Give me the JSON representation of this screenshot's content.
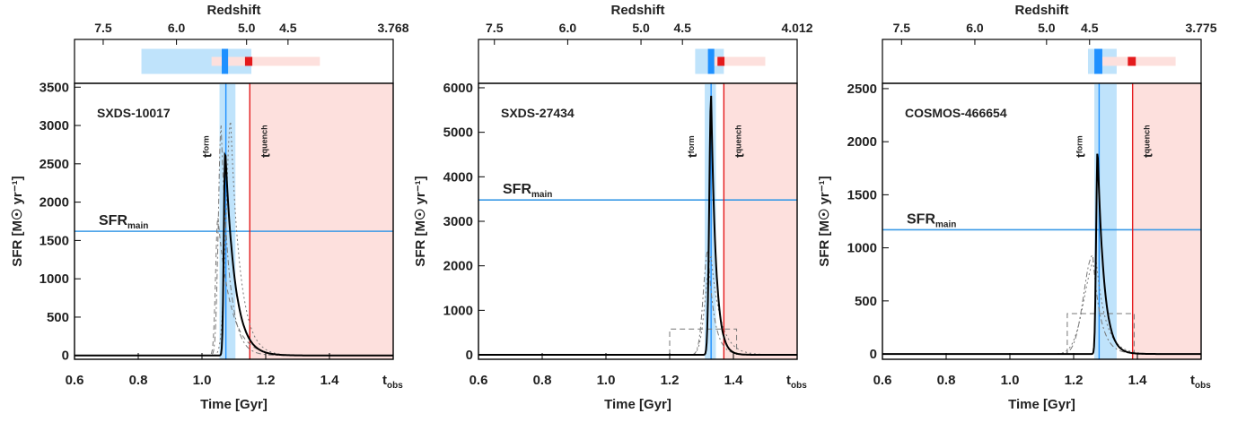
{
  "colors": {
    "form_band": "#bfe3fb",
    "form_line": "#1e90ff",
    "quench_band": "#fde0dd",
    "quench_line": "#e41a1c",
    "sfr_main_line": "#3a9ae6",
    "sfh": "#000000",
    "alt_sfh": "#777777"
  },
  "chart_data": [
    {
      "type": "line",
      "title": "SXDS-10017",
      "xlabel": "Time [Gyr]",
      "ylabel": "SFR [M☉ yr⁻¹]",
      "top_axis_label": "Redshift",
      "xlim": [
        0.6,
        1.6
      ],
      "ylim": [
        -50,
        3550
      ],
      "x_ticks": [
        "0.6",
        "0.8",
        "1.0",
        "1.2",
        "1.4"
      ],
      "t_obs_label": "t",
      "t_obs_sub": "obs",
      "y_ticks": [
        "0",
        "500",
        "1000",
        "1500",
        "2000",
        "2500",
        "3000",
        "3500"
      ],
      "z_ticks": [
        {
          "label": "7.5",
          "t": 0.69
        },
        {
          "label": "6.0",
          "t": 0.92
        },
        {
          "label": "5.0",
          "t": 1.14
        },
        {
          "label": "4.5",
          "t": 1.27
        },
        {
          "label": "3.768",
          "t": 1.6
        }
      ],
      "sfr_main": 1620,
      "sfr_main_label": "SFR",
      "sfr_main_sub": "main",
      "t_form": 1.075,
      "t_form_band": [
        1.055,
        1.105
      ],
      "t_quench": 1.15,
      "t_form_label": "t",
      "t_form_sub": "form",
      "t_quench_label": "t",
      "t_quench_sub": "quench",
      "top_form_bar_light": [
        0.81,
        1.155
      ],
      "top_form_bar_dark": [
        1.062,
        1.082
      ],
      "top_quench_bar_light": [
        1.03,
        1.37
      ],
      "top_quench_bar_dark": [
        1.135,
        1.158
      ],
      "sfh_peak_t": 1.073,
      "sfh_peak": 2690,
      "sfh_rise_tau": 0.006,
      "sfh_decay_tau": 0.03,
      "alt_sfh": [
        {
          "t0": 1.06,
          "peak": 3000,
          "rise": 0.012,
          "decay": 0.025,
          "dash": "6,3,2,3"
        },
        {
          "t0": 1.09,
          "peak": 3050,
          "rise": 0.02,
          "decay": 0.03,
          "dash": "2,3"
        },
        {
          "t0": 1.05,
          "peak": 1800,
          "rise": 0.01,
          "decay": 0.04,
          "dash": "5,4"
        }
      ]
    },
    {
      "type": "line",
      "title": "SXDS-27434",
      "xlabel": "Time [Gyr]",
      "ylabel": "SFR [M☉ yr⁻¹]",
      "top_axis_label": "Redshift",
      "xlim": [
        0.6,
        1.6
      ],
      "ylim": [
        -100,
        6100
      ],
      "x_ticks": [
        "0.6",
        "0.8",
        "1.0",
        "1.2",
        "1.4"
      ],
      "t_obs_label": "t",
      "t_obs_sub": "obs",
      "y_ticks": [
        "0",
        "1000",
        "2000",
        "3000",
        "4000",
        "5000",
        "6000"
      ],
      "z_ticks": [
        {
          "label": "7.5",
          "t": 0.65
        },
        {
          "label": "6.0",
          "t": 0.88
        },
        {
          "label": "5.0",
          "t": 1.11
        },
        {
          "label": "4.5",
          "t": 1.24
        },
        {
          "label": "4.012",
          "t": 1.6
        }
      ],
      "sfr_main": 3480,
      "sfr_main_label": "SFR",
      "sfr_main_sub": "main",
      "t_form": 1.33,
      "t_form_band": [
        1.31,
        1.345
      ],
      "t_quench": 1.37,
      "t_form_label": "t",
      "t_form_sub": "form",
      "t_quench_label": "t",
      "t_quench_sub": "quench",
      "top_form_bar_light": [
        1.28,
        1.37
      ],
      "top_form_bar_dark": [
        1.32,
        1.34
      ],
      "top_quench_bar_light": [
        1.32,
        1.5
      ],
      "top_quench_bar_dark": [
        1.35,
        1.372
      ],
      "sfh_peak_t": 1.33,
      "sfh_peak": 5820,
      "sfh_rise_tau": 0.008,
      "sfh_decay_tau": 0.015,
      "alt_sfh": [
        {
          "t0": 1.32,
          "peak": 2350,
          "rise": 0.02,
          "decay": 0.02,
          "dash": "6,3,2,3"
        },
        {
          "t0": 1.33,
          "peak": 2200,
          "rise": 0.025,
          "decay": 0.03,
          "dash": "2,3"
        }
      ],
      "alt_box": {
        "x0": 1.2,
        "x1": 1.41,
        "y": 580
      }
    },
    {
      "type": "line",
      "title": "COSMOS-466654",
      "xlabel": "Time [Gyr]",
      "ylabel": "SFR [M☉ yr⁻¹]",
      "top_axis_label": "Redshift",
      "xlim": [
        0.6,
        1.6
      ],
      "ylim": [
        -50,
        2550
      ],
      "x_ticks": [
        "0.6",
        "0.8",
        "1.0",
        "1.2",
        "1.4"
      ],
      "t_obs_label": "t",
      "t_obs_sub": "obs",
      "y_ticks": [
        "0",
        "500",
        "1000",
        "1500",
        "2000",
        "2500"
      ],
      "z_ticks": [
        {
          "label": "7.5",
          "t": 0.66
        },
        {
          "label": "6.0",
          "t": 0.89
        },
        {
          "label": "5.0",
          "t": 1.115
        },
        {
          "label": "4.5",
          "t": 1.25
        },
        {
          "label": "3.775",
          "t": 1.6
        }
      ],
      "sfr_main": 1170,
      "sfr_main_label": "SFR",
      "sfr_main_sub": "main",
      "t_form": 1.28,
      "t_form_band": [
        1.265,
        1.335
      ],
      "t_quench": 1.385,
      "t_form_label": "t",
      "t_form_sub": "form",
      "t_quench_label": "t",
      "t_quench_sub": "quench",
      "top_form_bar_light": [
        1.245,
        1.335
      ],
      "top_form_bar_dark": [
        1.265,
        1.29
      ],
      "top_quench_bar_light": [
        1.27,
        1.52
      ],
      "top_quench_bar_dark": [
        1.37,
        1.395
      ],
      "sfh_peak_t": 1.275,
      "sfh_peak": 1940,
      "sfh_rise_tau": 0.006,
      "sfh_decay_tau": 0.02,
      "alt_sfh": [
        {
          "t0": 1.26,
          "peak": 930,
          "rise": 0.04,
          "decay": 0.025,
          "dash": "6,3,2,3"
        },
        {
          "t0": 1.27,
          "peak": 900,
          "rise": 0.05,
          "decay": 0.03,
          "dash": "2,3"
        }
      ],
      "alt_box": {
        "x0": 1.18,
        "x1": 1.39,
        "y": 380
      }
    }
  ]
}
